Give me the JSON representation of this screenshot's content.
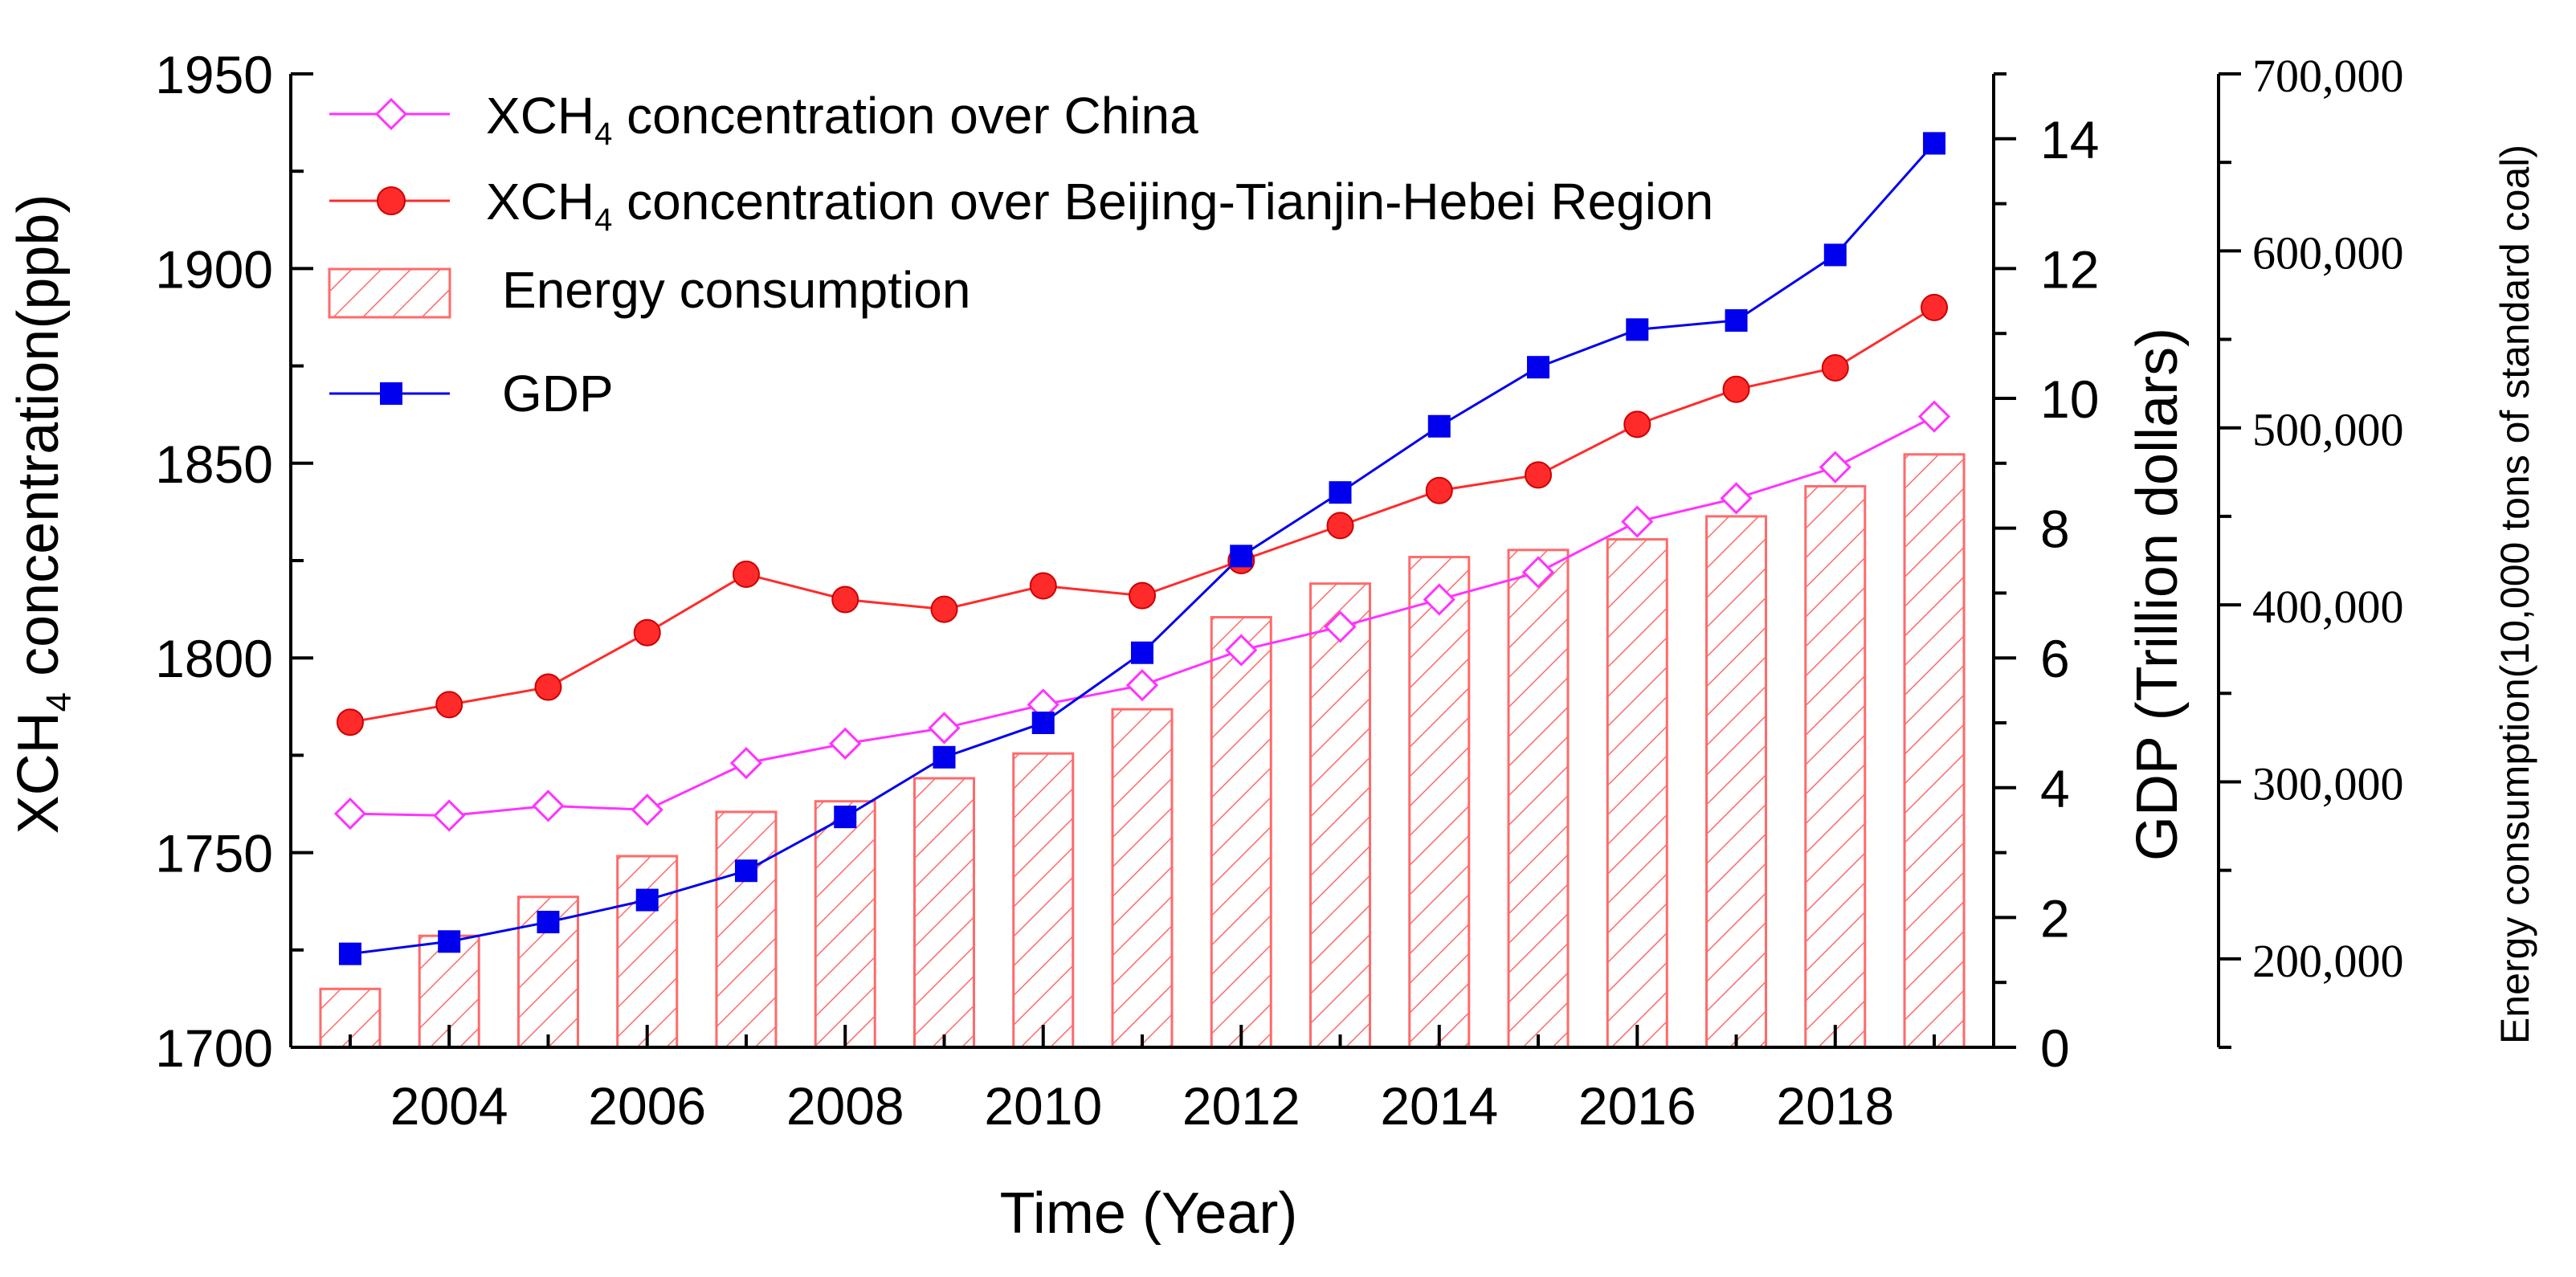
{
  "chart_data": {
    "type": "bar",
    "xlabel": "Time (Year)",
    "x_ticks": [
      "2004",
      "2006",
      "2008",
      "2010",
      "2012",
      "2014",
      "2016",
      "2018"
    ],
    "years": [
      2003,
      2004,
      2005,
      2006,
      2007,
      2008,
      2009,
      2010,
      2011,
      2012,
      2013,
      2014,
      2015,
      2016,
      2017,
      2018,
      2019
    ],
    "xlim": [
      2002.4,
      2019.6
    ],
    "axes": {
      "left": {
        "label_pre": "XCH",
        "label_sub": "4",
        "label_post": " concentration(ppb)",
        "ylim": [
          1700,
          1950
        ],
        "ticks": [
          "1700",
          "1750",
          "1800",
          "1850",
          "1900",
          "1950"
        ]
      },
      "gdp": {
        "label": "GDP (Trillion dollars)",
        "ylim": [
          0,
          15
        ],
        "ticks": [
          "0",
          "2",
          "4",
          "6",
          "8",
          "10",
          "12",
          "14"
        ]
      },
      "energy": {
        "label": "Energy consumption(10,000 tons of standard coal)",
        "ylim": [
          150000,
          700000
        ],
        "ticks": [
          "200,000",
          "300,000",
          "400,000",
          "500,000",
          "600,000",
          "700,000"
        ]
      }
    },
    "series": [
      {
        "name": "XCH4 concentration over China",
        "legend_pre": "XCH",
        "legend_sub": "4",
        "legend_post": " concentration over China",
        "axis": "left",
        "kind": "line",
        "marker": "diamond-open",
        "color": "#ff33ff",
        "values": [
          1760,
          1759.5,
          1762,
          1761,
          1773,
          1778,
          1782,
          1788,
          1793,
          1802,
          1808,
          1815,
          1822,
          1835,
          1841,
          1849,
          1862
        ]
      },
      {
        "name": "XCH4 concentration over Beijing-Tianjin-Hebei Region",
        "legend_pre": "XCH",
        "legend_sub": "4",
        "legend_post": " concentration over Beijing-Tianjin-Hebei Region",
        "axis": "left",
        "kind": "line",
        "marker": "circle-filled",
        "color": "#ff2b2b",
        "values": [
          1783.5,
          1788,
          1792.5,
          1806.5,
          1821.5,
          1815,
          1812.5,
          1818.5,
          1816,
          1825,
          1834,
          1843,
          1847,
          1860,
          1869,
          1874.5,
          1890
        ]
      },
      {
        "name": "Energy consumption",
        "legend_pre": "Energy consumption",
        "legend_sub": "",
        "legend_post": "",
        "axis": "energy",
        "kind": "bar",
        "marker": "hatched-bar",
        "color": "#ff6a6a",
        "values": [
          183000,
          213000,
          235000,
          258000,
          283000,
          289000,
          302000,
          316000,
          341000,
          393000,
          412000,
          427000,
          431000,
          437000,
          450000,
          467000,
          485000
        ]
      },
      {
        "name": "GDP",
        "legend_pre": "GDP",
        "legend_sub": "",
        "legend_post": "",
        "axis": "gdp",
        "kind": "line",
        "marker": "square-filled",
        "color": "#0000ee",
        "values": [
          1.44,
          1.63,
          1.93,
          2.27,
          2.72,
          3.55,
          4.47,
          5.0,
          6.08,
          7.57,
          8.55,
          9.57,
          10.48,
          11.06,
          11.2,
          12.21,
          13.93
        ]
      }
    ],
    "legend_position": "top-left",
    "grid": false
  }
}
